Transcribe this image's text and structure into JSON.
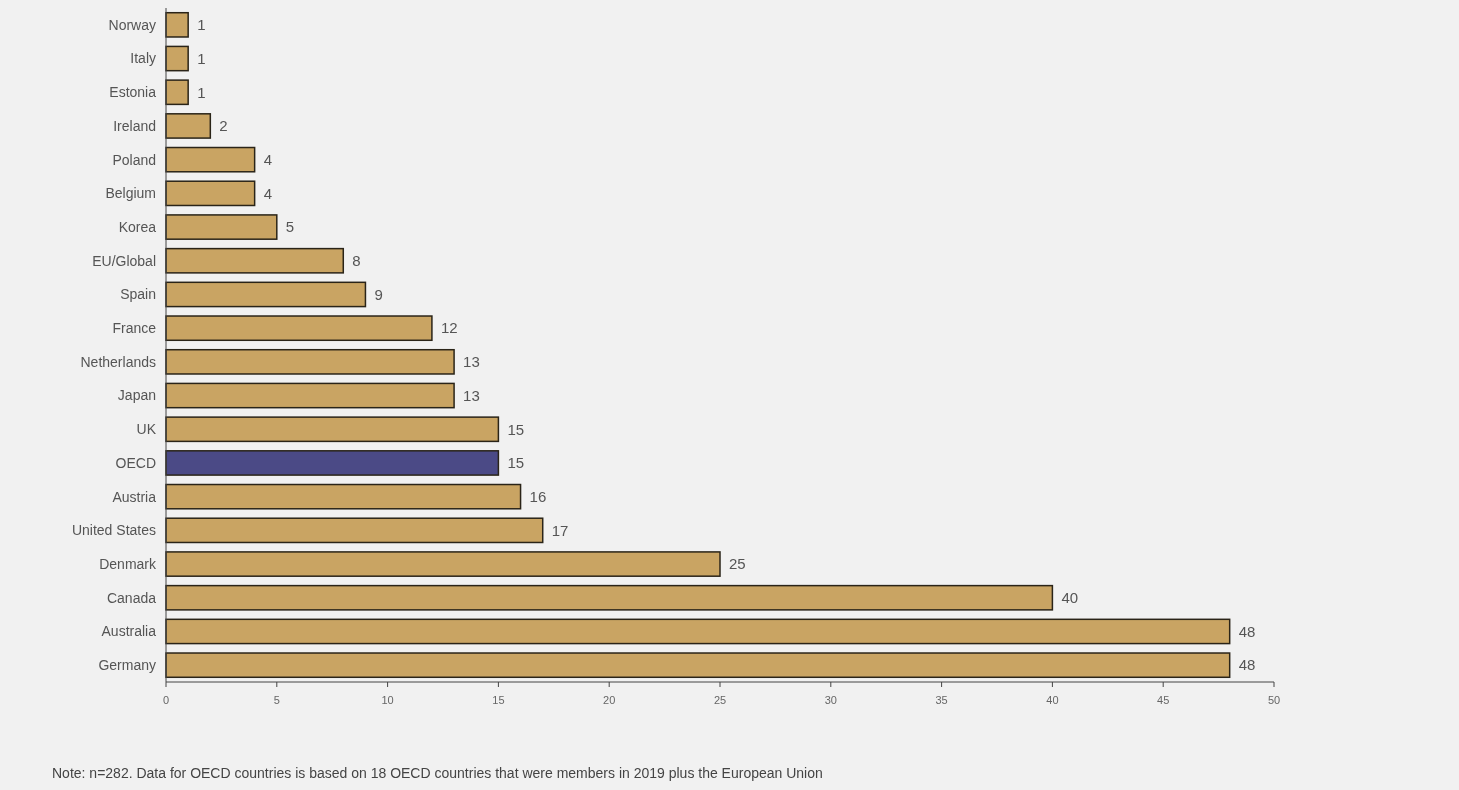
{
  "chart_data": {
    "type": "bar",
    "orientation": "horizontal",
    "categories": [
      "Norway",
      "Italy",
      "Estonia",
      "Ireland",
      "Poland",
      "Belgium",
      "Korea",
      "EU/Global",
      "Spain",
      "France",
      "Netherlands",
      "Japan",
      "UK",
      "OECD",
      "Austria",
      "United States",
      "Denmark",
      "Canada",
      "Australia",
      "Germany"
    ],
    "values": [
      1,
      1,
      1,
      2,
      4,
      4,
      5,
      8,
      9,
      12,
      13,
      13,
      15,
      15,
      16,
      17,
      25,
      40,
      48,
      48
    ],
    "colors": [
      "#c9a463",
      "#c9a463",
      "#c9a463",
      "#c9a463",
      "#c9a463",
      "#c9a463",
      "#c9a463",
      "#c9a463",
      "#c9a463",
      "#c9a463",
      "#c9a463",
      "#c9a463",
      "#c9a463",
      "#4b4a86",
      "#c9a463",
      "#c9a463",
      "#c9a463",
      "#c9a463",
      "#c9a463",
      "#c9a463"
    ],
    "xlim": [
      0,
      50
    ],
    "xticks": [
      0,
      5,
      10,
      15,
      20,
      25,
      30,
      35,
      40,
      45,
      50
    ],
    "data_labels": true,
    "annotations": [
      "Note: n=282. Data for OECD countries is based on 18 OECD countries that were members in 2019 plus the European Union"
    ]
  }
}
